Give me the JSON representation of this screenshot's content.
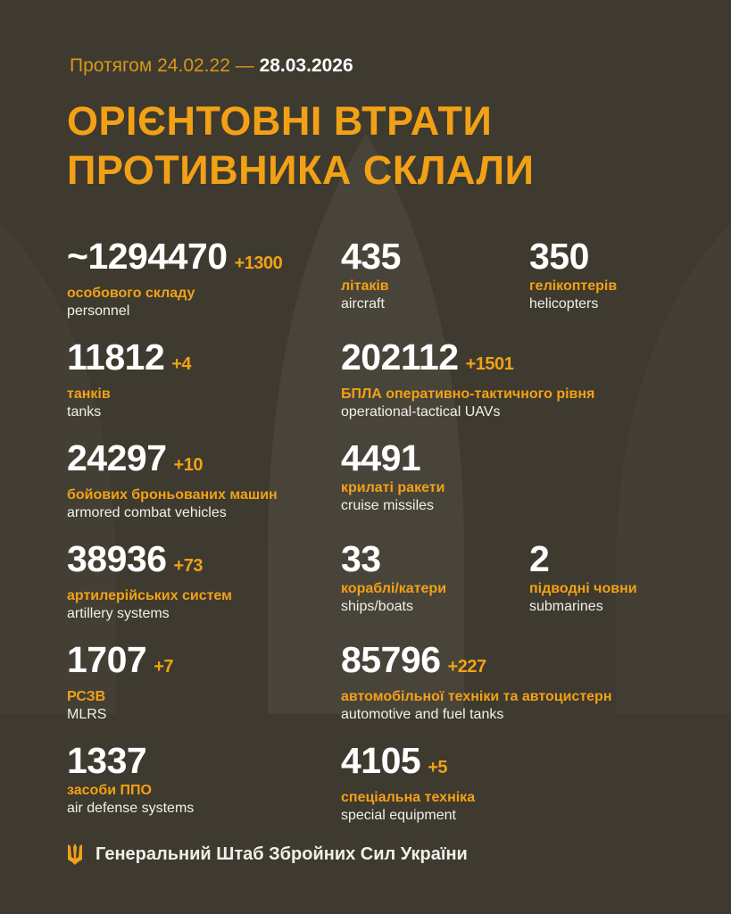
{
  "header": {
    "date_prefix": "Протягом 24.02.22 —",
    "date_end": "28.03.2026",
    "title_line1": "ОРІЄНТОВНІ ВТРАТИ",
    "title_line2": "ПРОТИВНИКА СКЛАЛИ"
  },
  "stats": [
    {
      "value": "~1294470",
      "delta": "+1300",
      "uk": "особового складу",
      "en": "personnel",
      "col": 0,
      "row": 0
    },
    {
      "value": "435",
      "delta": "",
      "uk": "літаків",
      "en": "aircraft",
      "col": 1,
      "row": 0
    },
    {
      "value": "350",
      "delta": "",
      "uk": "гелікоптерів",
      "en": "helicopters",
      "col": 2,
      "row": 0
    },
    {
      "value": "11812",
      "delta": "+4",
      "uk": "танків",
      "en": "tanks",
      "col": 0,
      "row": 1
    },
    {
      "value": "202112",
      "delta": "+1501",
      "uk": "БПЛА оперативно-тактичного рівня",
      "en": "operational-tactical UAVs",
      "col": 1,
      "row": 1
    },
    {
      "value": "24297",
      "delta": "+10",
      "uk": "бойових броньованих машин",
      "en": "armored combat vehicles",
      "col": 0,
      "row": 2
    },
    {
      "value": "4491",
      "delta": "",
      "uk": "крилаті ракети",
      "en": "cruise missiles",
      "col": 1,
      "row": 2
    },
    {
      "value": "38936",
      "delta": "+73",
      "uk": "артилерійських систем",
      "en": "artillery systems",
      "col": 0,
      "row": 3
    },
    {
      "value": "33",
      "delta": "",
      "uk": "кораблі/катери",
      "en": "ships/boats",
      "col": 1,
      "row": 3
    },
    {
      "value": "2",
      "delta": "",
      "uk": "підводні човни",
      "en": "submarines",
      "col": 2,
      "row": 3
    },
    {
      "value": "1707",
      "delta": "+7",
      "uk": "РСЗВ",
      "en": "MLRS",
      "col": 0,
      "row": 4
    },
    {
      "value": "85796",
      "delta": "+227",
      "uk": "автомобільної техніки та автоцистерн",
      "en": "automotive and fuel tanks",
      "col": 1,
      "row": 4
    },
    {
      "value": "1337",
      "delta": "",
      "uk": "засоби ППО",
      "en": "air defense systems",
      "col": 0,
      "row": 5
    },
    {
      "value": "4105",
      "delta": "+5",
      "uk": "спеціальна техніка",
      "en": "special equipment",
      "col": 1,
      "row": 5
    }
  ],
  "footer": {
    "org": "Генеральний Штаб Збройних Сил України",
    "icon": "trident-icon"
  },
  "colors": {
    "background": "#3e3a2f",
    "accent": "#f2a116",
    "text": "#ffffff"
  }
}
